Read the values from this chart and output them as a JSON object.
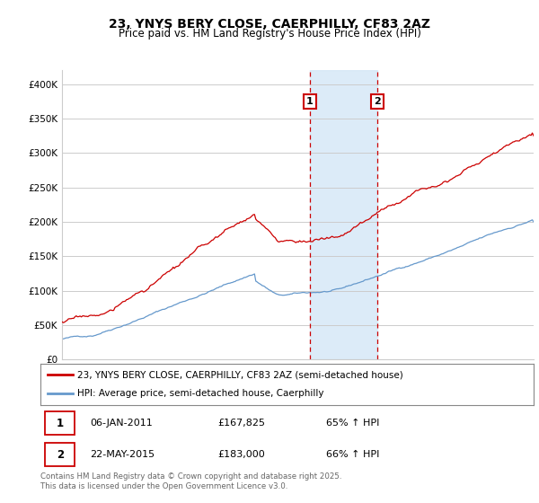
{
  "title": "23, YNYS BERY CLOSE, CAERPHILLY, CF83 2AZ",
  "subtitle": "Price paid vs. HM Land Registry's House Price Index (HPI)",
  "ylabel_ticks": [
    "£0",
    "£50K",
    "£100K",
    "£150K",
    "£200K",
    "£250K",
    "£300K",
    "£350K",
    "£400K"
  ],
  "ytick_values": [
    0,
    50000,
    100000,
    150000,
    200000,
    250000,
    300000,
    350000,
    400000
  ],
  "ylim": [
    0,
    420000
  ],
  "xlim_start": 1995.0,
  "xlim_end": 2025.5,
  "red_line_color": "#cc0000",
  "blue_line_color": "#6699cc",
  "shaded_color": "#d6e8f7",
  "vline_color": "#cc0000",
  "marker1_x": 2011.03,
  "marker2_x": 2015.39,
  "m1_y": 167825,
  "m2_y": 183000,
  "annotation1_label": "1",
  "annotation2_label": "2",
  "legend_label1": "23, YNYS BERY CLOSE, CAERPHILLY, CF83 2AZ (semi-detached house)",
  "legend_label2": "HPI: Average price, semi-detached house, Caerphilly",
  "table_row1": [
    "1",
    "06-JAN-2011",
    "£167,825",
    "65% ↑ HPI"
  ],
  "table_row2": [
    "2",
    "22-MAY-2015",
    "£183,000",
    "66% ↑ HPI"
  ],
  "footnote": "Contains HM Land Registry data © Crown copyright and database right 2025.\nThis data is licensed under the Open Government Licence v3.0.",
  "background_color": "#ffffff",
  "grid_color": "#cccccc",
  "n_points": 366
}
